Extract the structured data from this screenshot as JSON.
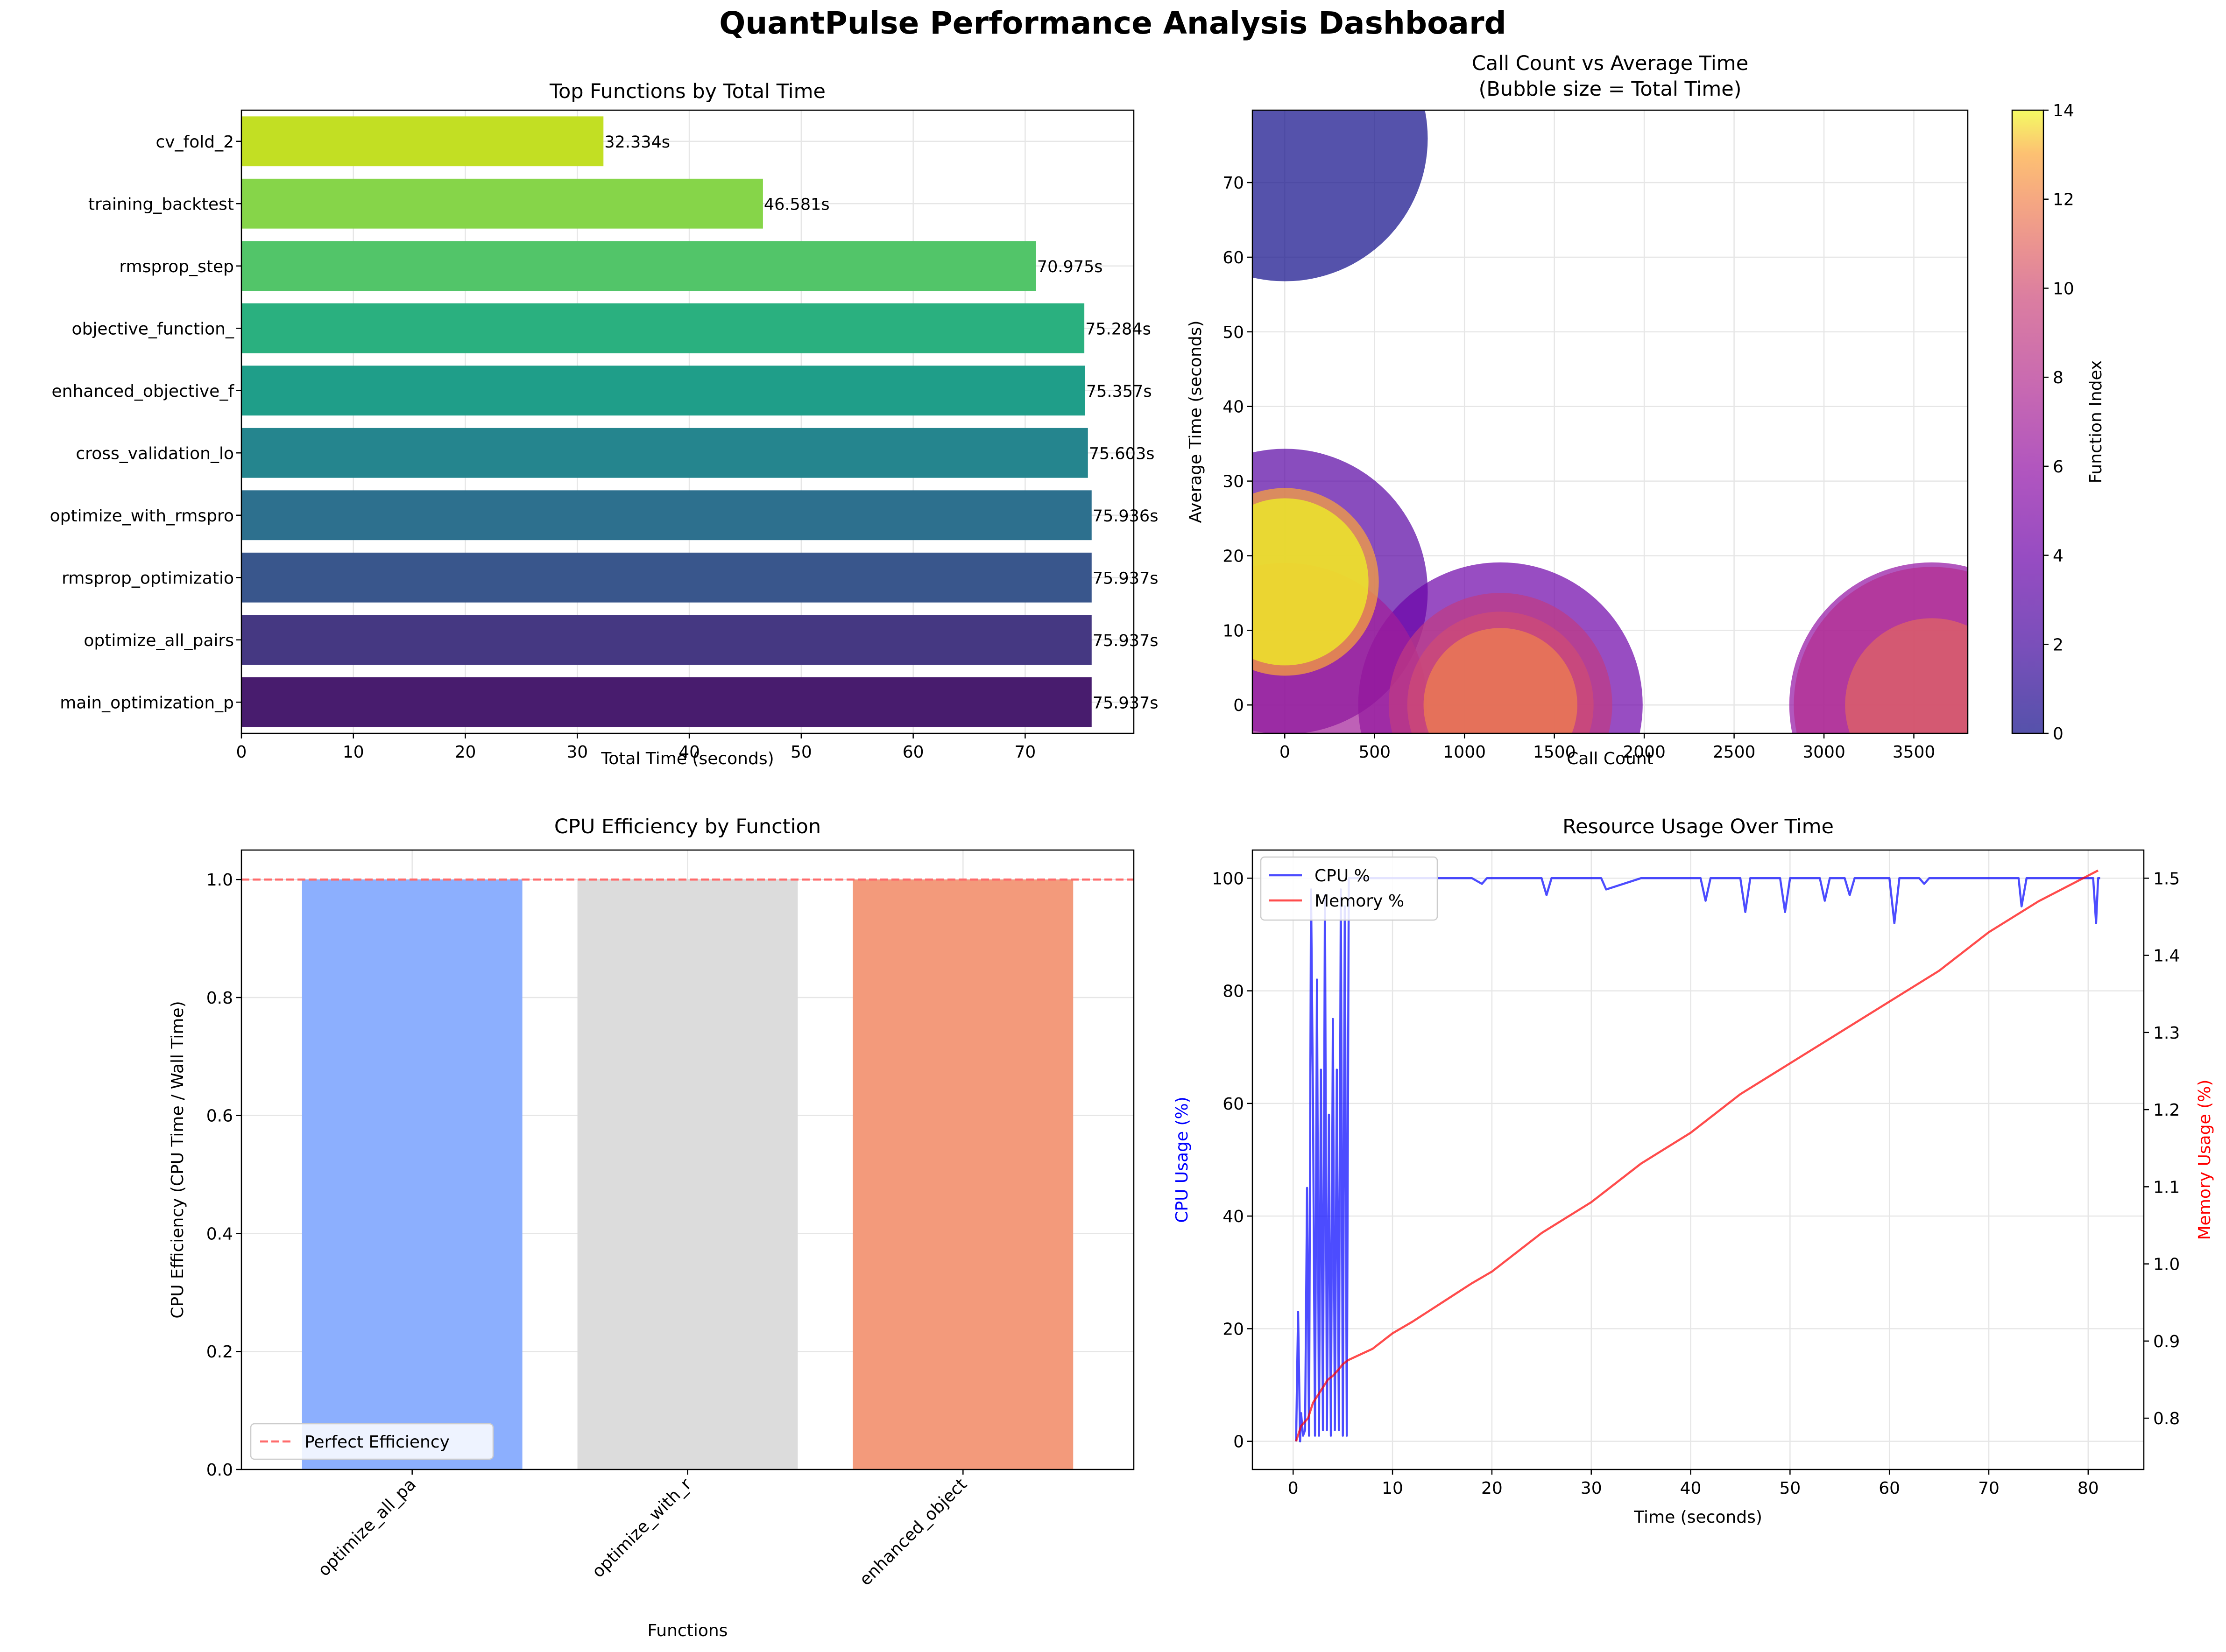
{
  "dashboard": {
    "title": "QuantPulse Performance Analysis Dashboard"
  },
  "chart_data": [
    {
      "type": "bar",
      "orientation": "horizontal",
      "title": "Top Functions by Total Time",
      "xlabel": "Total Time (seconds)",
      "ylabel": "",
      "xlim": [
        0,
        79.7
      ],
      "xticks": [
        0,
        10,
        20,
        30,
        40,
        50,
        60,
        70
      ],
      "grid": true,
      "categories": [
        "main_optimization_p",
        "optimize_all_pairs",
        "rmsprop_optimizatio",
        "optimize_with_rmspro",
        "cross_validation_lo",
        "enhanced_objective_f",
        "objective_function_",
        "rmsprop_step",
        "training_backtest",
        "cv_fold_2"
      ],
      "values": [
        75.937,
        75.937,
        75.937,
        75.936,
        75.603,
        75.357,
        75.284,
        70.975,
        46.581,
        32.334
      ],
      "data_labels": [
        "75.937s",
        "75.937s",
        "75.937s",
        "75.936s",
        "75.603s",
        "75.357s",
        "75.284s",
        "70.975s",
        "46.581s",
        "32.334s"
      ],
      "colors": [
        "#481c6e",
        "#453882",
        "#39568c",
        "#2d708e",
        "#25858e",
        "#1f9e89",
        "#2ab07f",
        "#52c569",
        "#86d549",
        "#c2df23"
      ]
    },
    {
      "type": "scatter",
      "title": "Call Count vs Average Time\n(Bubble size = Total Time)",
      "xlabel": "Call Count",
      "ylabel": "Average Time (seconds)",
      "xlim": [
        -180,
        3800
      ],
      "ylim": [
        -3.8,
        79.7
      ],
      "xticks": [
        0,
        500,
        1000,
        1500,
        2000,
        2500,
        3000,
        3500
      ],
      "yticks": [
        0,
        10,
        20,
        30,
        40,
        50,
        60,
        70
      ],
      "grid": true,
      "colorbar": {
        "label": "Function Index",
        "min": 0,
        "max": 14,
        "ticks": [
          0,
          2,
          4,
          6,
          8,
          10,
          12,
          14
        ],
        "colormap": "plasma"
      },
      "points": [
        {
          "x": 1,
          "y": 75.9,
          "total": 75.9,
          "index": 0
        },
        {
          "x": 1,
          "y": 15.2,
          "total": 75.9,
          "index": 3
        },
        {
          "x": 3600,
          "y": 0.02,
          "total": 75.6,
          "index": 6
        },
        {
          "x": 1200,
          "y": 0.06,
          "total": 75.3,
          "index": 4
        },
        {
          "x": 1,
          "y": 0,
          "total": 75.2,
          "index": 7
        },
        {
          "x": 3600,
          "y": 0.02,
          "total": 70.9,
          "index": 8
        },
        {
          "x": 1200,
          "y": 0.04,
          "total": 46.5,
          "index": 9
        },
        {
          "x": 1200,
          "y": 0.03,
          "total": 32.3,
          "index": 10
        },
        {
          "x": 3600,
          "y": 0.01,
          "total": 28.0,
          "index": 11
        },
        {
          "x": 1200,
          "y": 0.02,
          "total": 22.0,
          "index": 12
        },
        {
          "x": 1,
          "y": 16.5,
          "total": 32.8,
          "index": 13
        },
        {
          "x": 1,
          "y": 16.5,
          "total": 26.0,
          "index": 14
        }
      ]
    },
    {
      "type": "bar",
      "title": "CPU Efficiency by Function",
      "xlabel": "Functions",
      "ylabel": "CPU Efficiency (CPU Time / Wall Time)",
      "ylim": [
        0,
        1.05
      ],
      "yticks": [
        0.0,
        0.2,
        0.4,
        0.6,
        0.8,
        1.0
      ],
      "grid": true,
      "categories": [
        "optimize_all_pa",
        "optimize_with_r",
        "enhanced_object"
      ],
      "values": [
        1.0,
        1.0,
        1.0
      ],
      "colors": [
        "#8caffe",
        "#dcdcdc",
        "#f39a7b"
      ],
      "reference_line": {
        "y": 1.0,
        "label": "Perfect Efficiency",
        "color": "#ff6b6b"
      },
      "legend": "lower-left"
    },
    {
      "type": "line",
      "title": "Resource Usage Over Time",
      "xlabel": "Time (seconds)",
      "ylabel": "CPU Usage (%)",
      "ylabel_right": "Memory Usage (%)",
      "xlim": [
        -4.1,
        85.6
      ],
      "xticks": [
        0,
        10,
        20,
        30,
        40,
        50,
        60,
        70,
        80
      ],
      "ylim": [
        -5,
        105
      ],
      "yticks": [
        0,
        20,
        40,
        60,
        80,
        100
      ],
      "ylim_right": [
        0.7335,
        1.5365
      ],
      "yticks_right": [
        0.8,
        0.9,
        1.0,
        1.1,
        1.2,
        1.3,
        1.4,
        1.5
      ],
      "grid": true,
      "legend": "top-left",
      "series": [
        {
          "name": "CPU %",
          "color": "#0000ff",
          "axis": "left",
          "x": [
            0.3,
            0.5,
            0.7,
            0.8,
            1.0,
            1.2,
            1.4,
            1.6,
            1.8,
            2.0,
            2.2,
            2.4,
            2.6,
            2.8,
            3.0,
            3.2,
            3.4,
            3.6,
            3.8,
            4.0,
            4.2,
            4.4,
            4.6,
            4.8,
            5.0,
            5.2,
            5.4,
            5.6,
            6,
            8,
            10,
            12,
            15,
            18,
            19,
            19.5,
            20,
            22,
            25,
            25.5,
            26,
            28,
            30,
            31,
            31.5,
            35,
            38,
            41,
            41.5,
            42,
            44,
            45,
            45.5,
            46,
            48,
            49,
            49.5,
            50,
            52,
            53,
            53.5,
            54,
            55.5,
            56,
            56.5,
            58,
            60,
            60.5,
            61,
            63,
            63.5,
            64,
            66,
            70,
            73,
            73.3,
            73.8,
            76,
            78,
            80.5,
            80.8,
            81,
            81.2
          ],
          "y": [
            0,
            23,
            0,
            5,
            1,
            2,
            45,
            1,
            98,
            60,
            1,
            82,
            1,
            66,
            2,
            97,
            2,
            58,
            1,
            75,
            2,
            66,
            2,
            98,
            1,
            95,
            1,
            100,
            100,
            100,
            100,
            100,
            100,
            100,
            99,
            100,
            100,
            100,
            100,
            97,
            100,
            100,
            100,
            100,
            98,
            100,
            100,
            100,
            96,
            100,
            100,
            100,
            94,
            100,
            100,
            100,
            94,
            100,
            100,
            100,
            96,
            100,
            100,
            97,
            100,
            100,
            100,
            92,
            100,
            100,
            99,
            100,
            100,
            100,
            100,
            95,
            100,
            100,
            100,
            100,
            92,
            100,
            100
          ]
        },
        {
          "name": "Memory %",
          "color": "#ff0000",
          "axis": "right",
          "x": [
            0.3,
            0.8,
            1.5,
            2.0,
            2.5,
            3.0,
            3.5,
            4.0,
            4.5,
            5.0,
            5.5,
            6,
            8,
            10,
            12,
            15,
            18,
            20,
            25,
            30,
            35,
            40,
            45,
            50,
            55,
            60,
            65,
            70,
            75,
            81
          ],
          "y": [
            0.77,
            0.79,
            0.8,
            0.82,
            0.83,
            0.84,
            0.85,
            0.855,
            0.862,
            0.87,
            0.875,
            0.878,
            0.89,
            0.91,
            0.925,
            0.95,
            0.975,
            0.99,
            1.04,
            1.08,
            1.13,
            1.17,
            1.22,
            1.26,
            1.3,
            1.34,
            1.38,
            1.43,
            1.47,
            1.51
          ]
        }
      ]
    }
  ]
}
